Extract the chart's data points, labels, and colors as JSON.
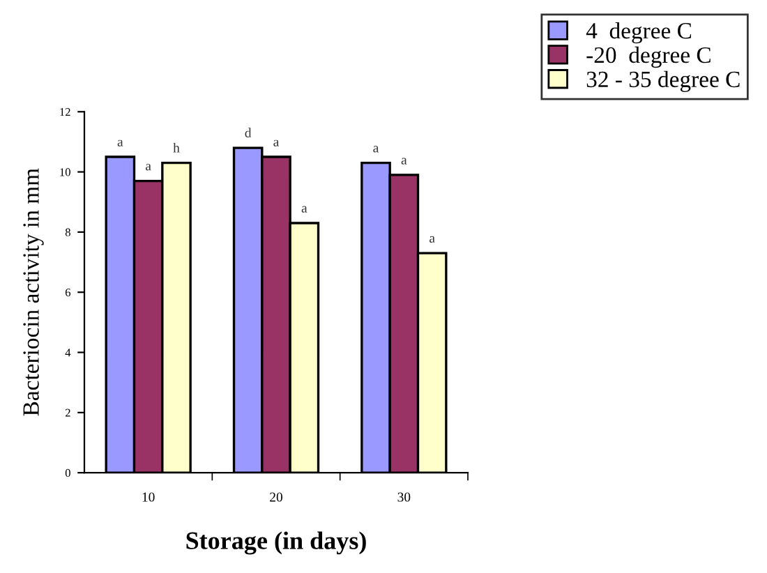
{
  "chart_data": {
    "type": "bar",
    "xlabel": "Storage (in days)",
    "ylabel": "Bacteriocin activity in mm",
    "categories": [
      "10",
      "20",
      "30"
    ],
    "series": [
      {
        "name": "4  degree C",
        "color": "#9999ff",
        "values": [
          10.5,
          10.8,
          10.3
        ]
      },
      {
        "name": "-20  degree C",
        "color": "#993366",
        "values": [
          9.7,
          10.5,
          9.9
        ]
      },
      {
        "name": "32 - 35 degree C",
        "color": "#ffffcc",
        "values": [
          10.3,
          8.3,
          7.3
        ]
      }
    ],
    "annotations": [
      "a",
      "a",
      "h",
      "d",
      "a",
      "a",
      "a",
      "a",
      "a"
    ],
    "ylim": [
      0,
      12
    ],
    "yticks": [
      0,
      2,
      4,
      6,
      8,
      10,
      12
    ],
    "grid": false,
    "legend": "top right"
  }
}
